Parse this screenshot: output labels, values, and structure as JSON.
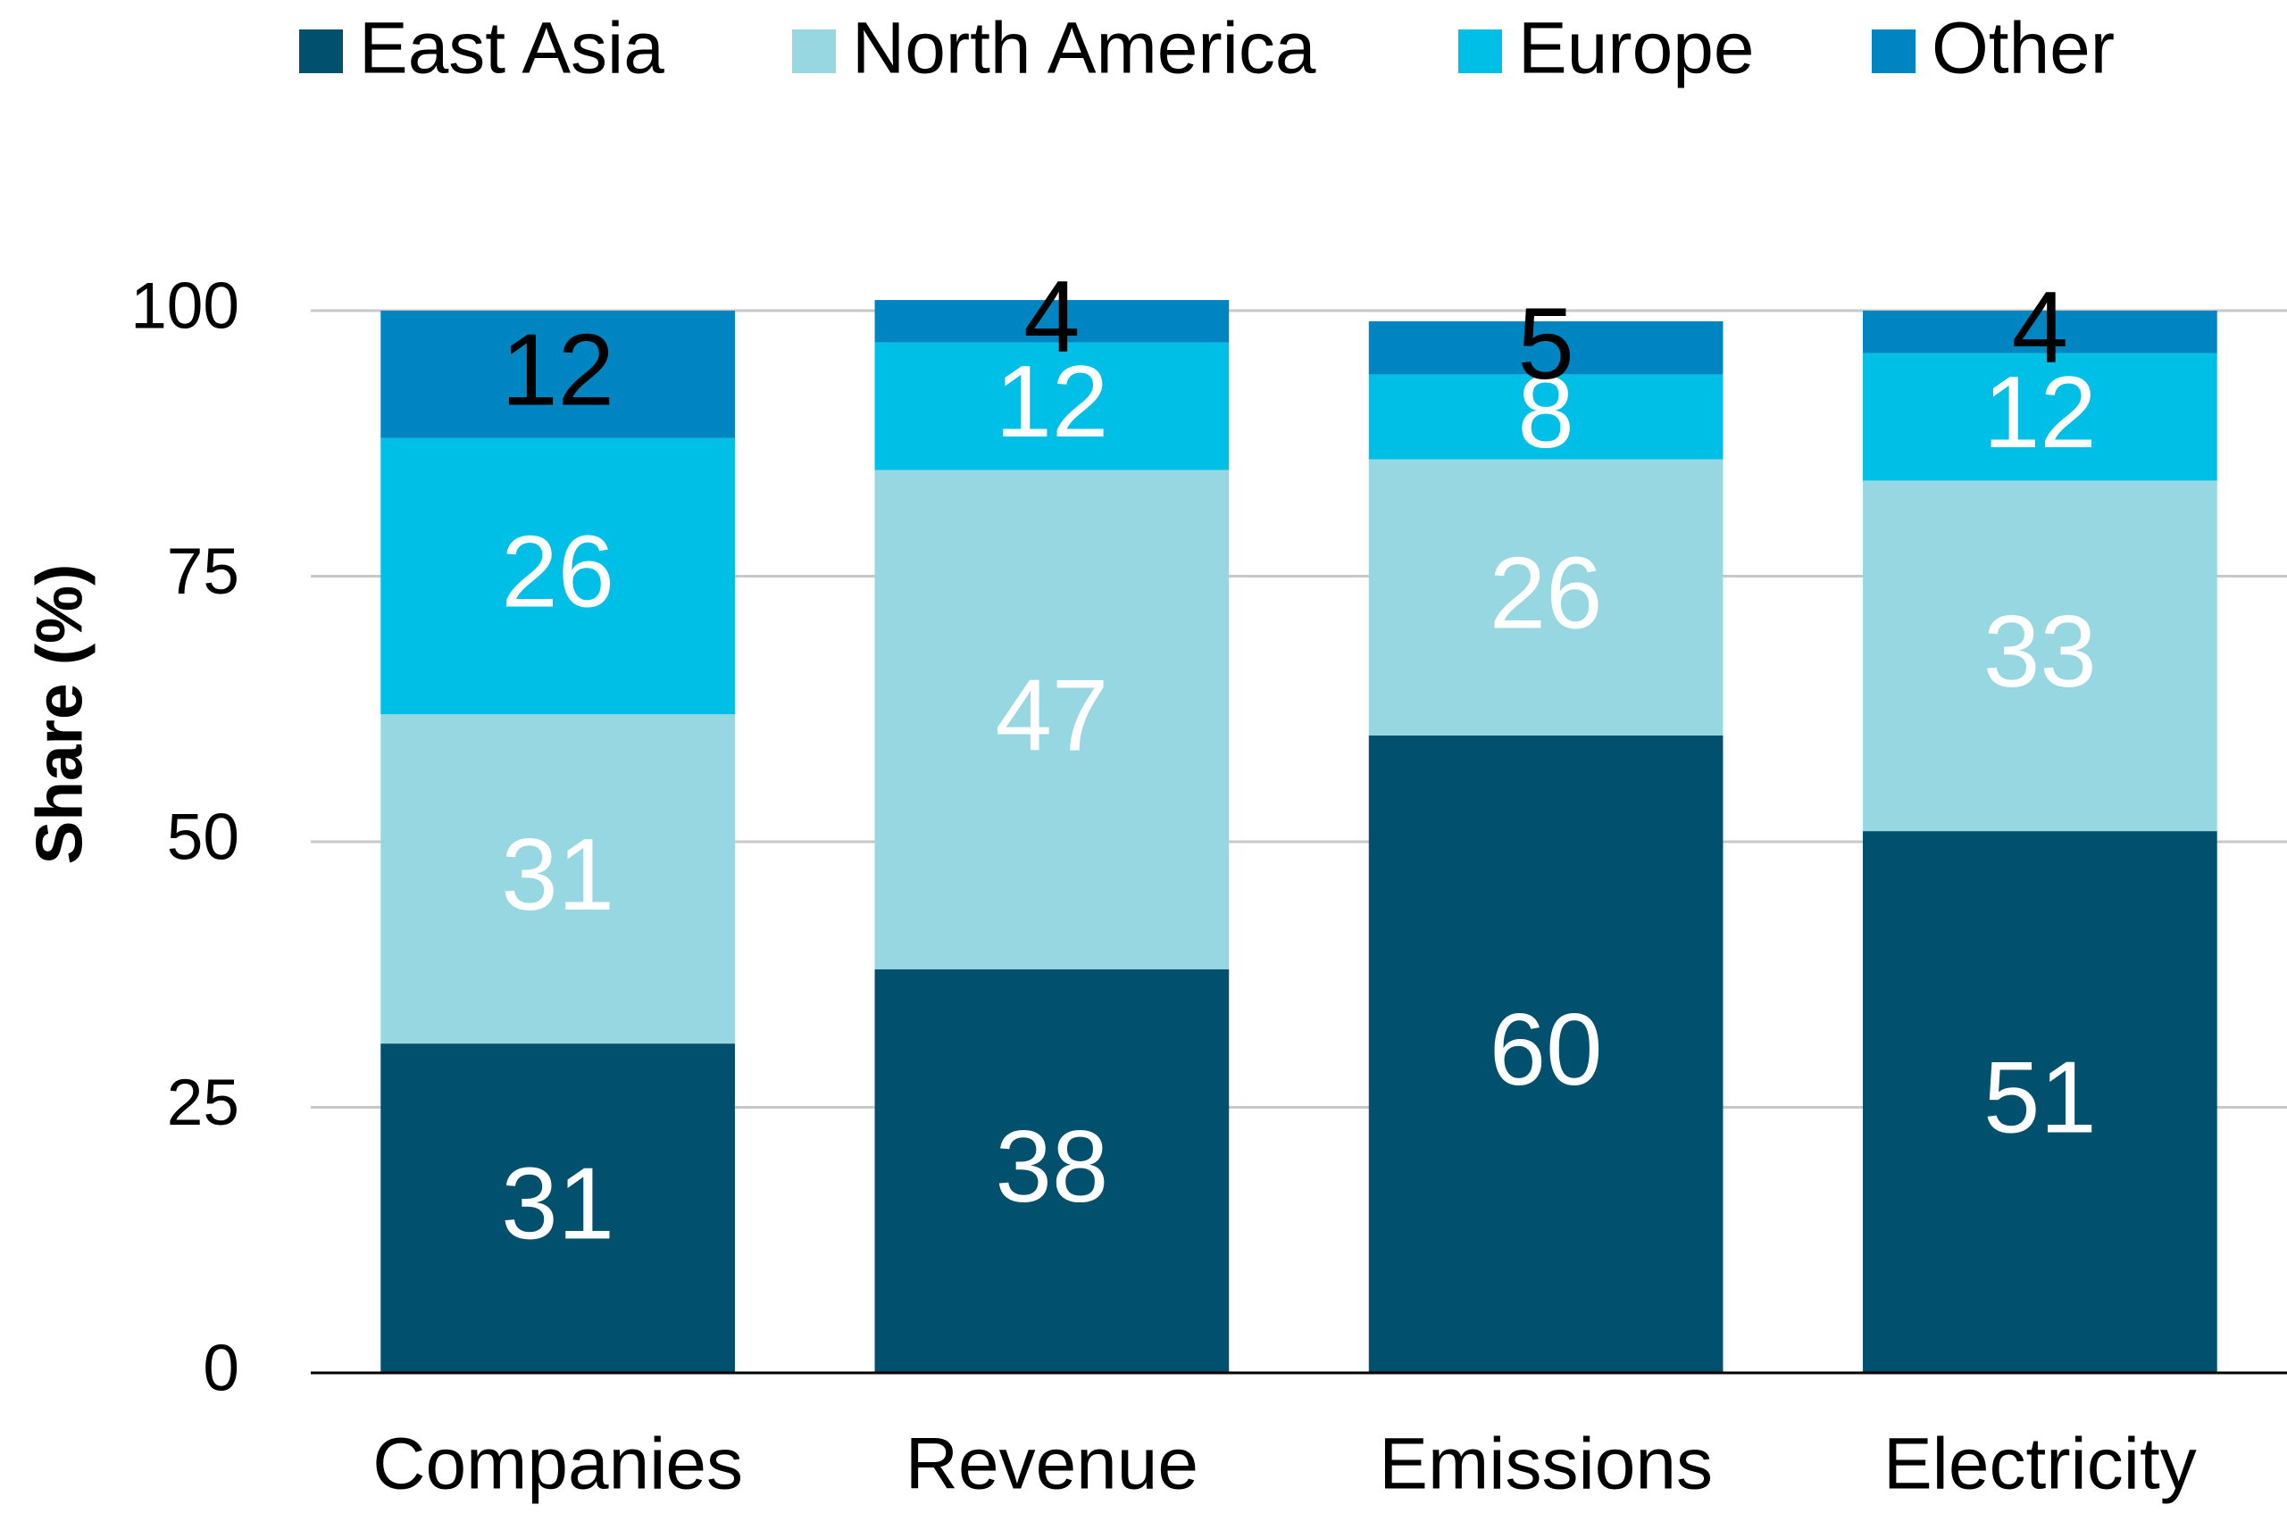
{
  "chart_data": {
    "type": "stacked_bar",
    "categories": [
      "Companies",
      "Revenue",
      "Emissions",
      "Electricity"
    ],
    "series": [
      {
        "name": "East Asia",
        "color": "#00506e",
        "values": [
          31,
          38,
          60,
          51
        ]
      },
      {
        "name": "North America",
        "color": "#96d7e2",
        "values": [
          31,
          47,
          26,
          33
        ]
      },
      {
        "name": "Europe",
        "color": "#00bfe6",
        "values": [
          26,
          12,
          8,
          12
        ]
      },
      {
        "name": "Other",
        "color": "#0085c3",
        "values": [
          12,
          4,
          5,
          4
        ]
      }
    ],
    "ylabel": "Share (%)",
    "ylim": [
      0,
      100
    ],
    "yticks": [
      0,
      25,
      50,
      75,
      100
    ],
    "grid": true
  }
}
